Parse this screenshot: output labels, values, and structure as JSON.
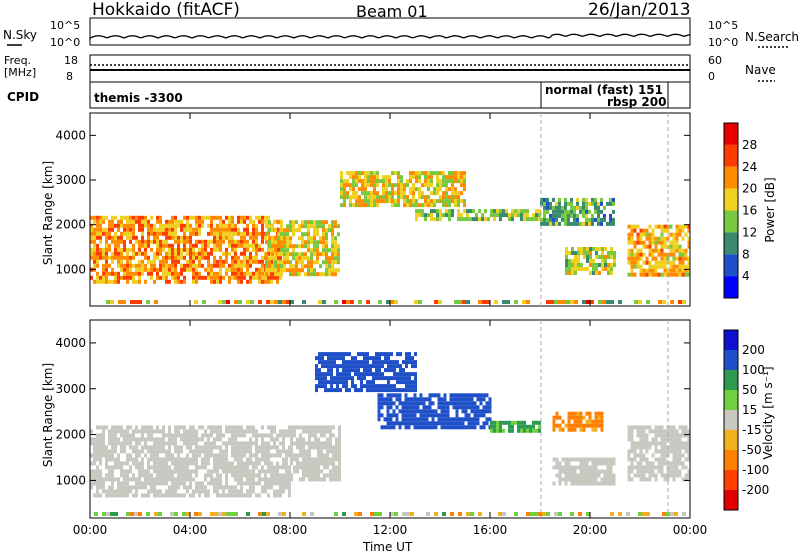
{
  "header": {
    "station": "Hokkaido (fitACF)",
    "beam": "Beam 01",
    "date": "26/Jan/2013"
  },
  "panels": {
    "nsky": {
      "label": "N.Sky",
      "tick_top": "10^5",
      "tick_bottom": "10^0",
      "right_label": "N.Search",
      "right_tick_top": "10^5",
      "right_tick_bottom": "10^0"
    },
    "freq": {
      "label_line1": "Freq.",
      "label_line2": "[MHz]",
      "tick_top": "18",
      "tick_bottom": "8",
      "right_label": "Nave",
      "right_tick_top": "60",
      "right_tick_bottom": "0"
    },
    "cpid": {
      "label": "CPID",
      "programs": [
        "themis -3300",
        "normal (fast) 151",
        "rbsp 200"
      ]
    }
  },
  "chart_data": [
    {
      "type": "heatmap",
      "name": "power",
      "ylabel": "Slant Range [km]",
      "xlabel": "",
      "xticks": [
        "00:00",
        "04:00",
        "08:00",
        "12:00",
        "16:00",
        "20:00",
        "00:00"
      ],
      "yticks": [
        1000,
        2000,
        3000,
        4000
      ],
      "ylim": [
        180,
        4500
      ],
      "xlim_hours": [
        0,
        24
      ],
      "colorbar": {
        "label": "Power [dB]",
        "ticks": [
          4,
          8,
          12,
          16,
          20,
          24,
          28
        ],
        "colors": [
          "#0000ff",
          "#2050c8",
          "#3a8a6e",
          "#78c840",
          "#f0d020",
          "#ff8c00",
          "#ff3c00",
          "#e80000"
        ]
      },
      "regions": [
        {
          "t0": 0.0,
          "t1": 7.6,
          "r0": 700,
          "r1": 2200,
          "level": 22
        },
        {
          "t0": 7.0,
          "t1": 10.0,
          "r0": 900,
          "r1": 2100,
          "level": 18
        },
        {
          "t0": 10.0,
          "t1": 15.0,
          "r0": 2400,
          "r1": 3200,
          "level": 18
        },
        {
          "t0": 13.0,
          "t1": 18.0,
          "r0": 2150,
          "r1": 2350,
          "level": 14
        },
        {
          "t0": 18.0,
          "t1": 21.0,
          "r0": 2000,
          "r1": 2600,
          "level": 12
        },
        {
          "t0": 19.0,
          "t1": 21.0,
          "r0": 900,
          "r1": 1500,
          "level": 16
        },
        {
          "t0": 21.5,
          "t1": 24.0,
          "r0": 900,
          "r1": 2000,
          "level": 20
        }
      ]
    },
    {
      "type": "heatmap",
      "name": "velocity",
      "ylabel": "Slant Range [km]",
      "xlabel": "Time UT",
      "xticks": [
        "00:00",
        "04:00",
        "08:00",
        "12:00",
        "16:00",
        "20:00",
        "00:00"
      ],
      "yticks": [
        1000,
        2000,
        3000,
        4000
      ],
      "ylim": [
        180,
        4500
      ],
      "xlim_hours": [
        0,
        24
      ],
      "colorbar": {
        "label": "Velocity [m s⁻¹]",
        "ticks": [
          200,
          100,
          50,
          15,
          -15,
          -50,
          -100,
          -200
        ],
        "colors": [
          "#1010d0",
          "#2050c8",
          "#2c9a50",
          "#70d040",
          "#c8c8c0",
          "#f0b020",
          "#ff8000",
          "#ff4000",
          "#e00000"
        ]
      },
      "regions": [
        {
          "t0": 0.0,
          "t1": 8.0,
          "r0": 700,
          "r1": 2200,
          "velocity": 0
        },
        {
          "t0": 8.0,
          "t1": 10.0,
          "r0": 1000,
          "r1": 2200,
          "velocity": 0
        },
        {
          "t0": 9.0,
          "t1": 13.0,
          "r0": 3000,
          "r1": 3800,
          "velocity": 180
        },
        {
          "t0": 11.5,
          "t1": 16.0,
          "r0": 2200,
          "r1": 2900,
          "velocity": 120
        },
        {
          "t0": 16.0,
          "t1": 18.0,
          "r0": 2100,
          "r1": 2300,
          "velocity": 60
        },
        {
          "t0": 18.5,
          "t1": 20.5,
          "r0": 2100,
          "r1": 2500,
          "velocity": -60
        },
        {
          "t0": 18.5,
          "t1": 21.0,
          "r0": 900,
          "r1": 1500,
          "velocity": 0
        },
        {
          "t0": 21.5,
          "t1": 24.0,
          "r0": 1000,
          "r1": 2200,
          "velocity": 0
        }
      ]
    }
  ]
}
